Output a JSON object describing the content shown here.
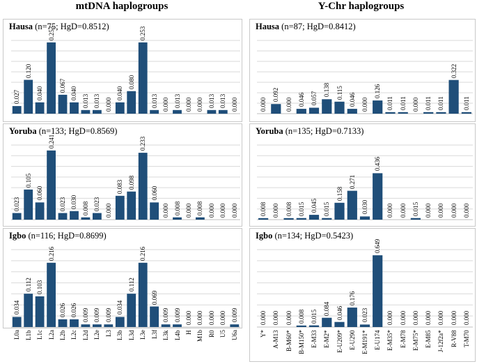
{
  "columns": {
    "mtdna_title": "mtDNA haplogroups",
    "ychr_title": "Y-Chr haplogroups"
  },
  "colors": {
    "bar": "#1f4e79",
    "grid": "#d9d9d9",
    "border": "#c8c8c8"
  },
  "chart_data": [
    {
      "id": "mt-hausa",
      "type": "bar",
      "column": "mtDNA",
      "population": "Hausa",
      "stats": "(n=75; HgD=0.8512)",
      "categories": [
        "L0a",
        "L1b",
        "L1c",
        "L2a",
        "L2b",
        "L2c",
        "L2d",
        "L2e",
        "L3",
        "L3b",
        "L3d",
        "L3e",
        "L3f",
        "L3k",
        "L4b",
        "H",
        "M1b",
        "R0",
        "U5",
        "U6a"
      ],
      "values": [
        0.027,
        0.12,
        0.04,
        0.253,
        0.067,
        0.04,
        0.013,
        0.013,
        0.0,
        0.04,
        0.08,
        0.253,
        0.013,
        0.0,
        0.013,
        0.0,
        0.0,
        0.013,
        0.013,
        0.0
      ],
      "labels": [
        "0.027",
        "0.120",
        "0.040",
        "0.253",
        "0.067",
        "0.040",
        "0.013",
        "0.013",
        "0.000",
        "0.040",
        "0.080",
        "0.253",
        "0.013",
        "0.000",
        "0.013",
        "0.000",
        "0.000",
        "0.013",
        "0.013",
        "0.000"
      ],
      "show_xlabels": false,
      "ylim": [
        0,
        0.26
      ]
    },
    {
      "id": "mt-yoruba",
      "type": "bar",
      "column": "mtDNA",
      "population": "Yoruba",
      "stats": "(n=133; HgD=0.8569)",
      "categories": [
        "L0a",
        "L1b",
        "L1c",
        "L2a",
        "L2b",
        "L2c",
        "L2d",
        "L2e",
        "L3",
        "L3b",
        "L3d",
        "L3e",
        "L3f",
        "L3k",
        "L4b",
        "H",
        "M1b",
        "R0",
        "U5",
        "U6a"
      ],
      "values": [
        0.023,
        0.105,
        0.06,
        0.241,
        0.023,
        0.03,
        0.008,
        0.023,
        0.0,
        0.083,
        0.098,
        0.233,
        0.06,
        0.0,
        0.008,
        0.0,
        0.008,
        0.0,
        0.0,
        0.0
      ],
      "labels": [
        "0.023",
        "0.105",
        "0.060",
        "0.241",
        "0.023",
        "0.030",
        "0.008",
        "0.023",
        "0.000",
        "0.083",
        "0.098",
        "0.233",
        "0.060",
        "0.000",
        "0.008",
        "0.000",
        "0.008",
        "0.000",
        "0.000",
        "0.000"
      ],
      "show_xlabels": false,
      "ylim": [
        0,
        0.26
      ]
    },
    {
      "id": "mt-igbo",
      "type": "bar",
      "column": "mtDNA",
      "population": "Igbo",
      "stats": "(n=116; HgD=0.8699)",
      "categories": [
        "L0a",
        "L1b",
        "L1c",
        "L2a",
        "L2b",
        "L2c",
        "L2d",
        "L2e",
        "L3",
        "L3b",
        "L3d",
        "L3e",
        "L3f",
        "L3k",
        "L4b",
        "H",
        "M1b",
        "R0",
        "U5",
        "U6a"
      ],
      "values": [
        0.034,
        0.112,
        0.103,
        0.216,
        0.026,
        0.026,
        0.009,
        0.009,
        0.009,
        0.034,
        0.112,
        0.216,
        0.069,
        0.009,
        0.009,
        0.0,
        0.0,
        0.0,
        0.0,
        0.009
      ],
      "labels": [
        "0.034",
        "0.112",
        "0.103",
        "0.216",
        "0.026",
        "0.026",
        "0.009",
        "0.009",
        "0.009",
        "0.034",
        "0.112",
        "0.216",
        "0.069",
        "0.009",
        "0.009",
        "0.000",
        "0.000",
        "0.000",
        "0.000",
        "0.009"
      ],
      "show_xlabels": true,
      "ylim": [
        0,
        0.26
      ]
    },
    {
      "id": "y-hausa",
      "type": "bar",
      "column": "Y-Chr",
      "population": "Hausa",
      "stats": "(n=87; HgD=0.8412)",
      "categories": [
        "Y*",
        "A-M13",
        "B-M60*",
        "B-M150*",
        "E-M33",
        "E-M2*",
        "E-U209*",
        "E-U290",
        "E-M191*",
        "E-U174",
        "E-M35*",
        "E-M78",
        "E-M75*",
        "E-M85",
        "J-12f2a*",
        "R-V88",
        "T-M70"
      ],
      "values": [
        0.0,
        0.092,
        0.0,
        0.046,
        0.057,
        0.138,
        0.115,
        0.046,
        0.0,
        0.126,
        0.011,
        0.011,
        0.0,
        0.011,
        0.011,
        0.322,
        0.011
      ],
      "labels": [
        "0.000",
        "0.092",
        "0.000",
        "0.046",
        "0.057",
        "0.138",
        "0.115",
        "0.046",
        "0.000",
        "0.126",
        "0.011",
        "0.011",
        "0.000",
        "0.011",
        "0.011",
        "0.322",
        "0.011"
      ],
      "show_xlabels": false,
      "ylim": [
        0,
        0.7
      ]
    },
    {
      "id": "y-yoruba",
      "type": "bar",
      "column": "Y-Chr",
      "population": "Yoruba",
      "stats": "(n=135; HgD=0.7133)",
      "categories": [
        "Y*",
        "A-M13",
        "B-M60*",
        "B-M150*",
        "E-M33",
        "E-M2*",
        "E-U209*",
        "E-U290",
        "E-M191*",
        "E-U174",
        "E-M35*",
        "E-M78",
        "E-M75*",
        "E-M85",
        "J-12f2a*",
        "R-V88",
        "T-M70"
      ],
      "values": [
        0.008,
        0.0,
        0.008,
        0.015,
        0.045,
        0.015,
        0.158,
        0.271,
        0.03,
        0.436,
        0.0,
        0.0,
        0.015,
        0.0,
        0.0,
        0.0,
        0.0
      ],
      "labels": [
        "0.008",
        "0.000",
        "0.008",
        "0.015",
        "0.045",
        "0.015",
        "0.158",
        "0.271",
        "0.030",
        "0.436",
        "0.000",
        "0.000",
        "0.015",
        "0.000",
        "0.000",
        "0.000",
        "0.000"
      ],
      "show_xlabels": false,
      "ylim": [
        0,
        0.7
      ]
    },
    {
      "id": "y-igbo",
      "type": "bar",
      "column": "Y-Chr",
      "population": "Igbo",
      "stats": "(n=134; HgD=0.5423)",
      "categories": [
        "Y*",
        "A-M13",
        "B-M60*",
        "B-M150*",
        "E-M33",
        "E-M2*",
        "E-U209*",
        "E-U290",
        "E-M191*",
        "E-U174",
        "E-M35*",
        "E-M78",
        "E-M75*",
        "E-M85",
        "J-12f2a*",
        "R-V88",
        "T-M70"
      ],
      "values": [
        0.0,
        0.0,
        0.0,
        0.008,
        0.015,
        0.084,
        0.046,
        0.176,
        0.023,
        0.649,
        0.0,
        0.0,
        0.0,
        0.0,
        0.0,
        0.0,
        0.0
      ],
      "labels": [
        "0.000",
        "0.000",
        "0.000",
        "0.008",
        "0.015",
        "0.084",
        "0.046",
        "0.176",
        "0.023",
        "0.649",
        "0.000",
        "0.000",
        "0.000",
        "0.000",
        "0.000",
        "0.000",
        "0.000"
      ],
      "show_xlabels": true,
      "ylim": [
        0,
        0.7
      ]
    }
  ]
}
